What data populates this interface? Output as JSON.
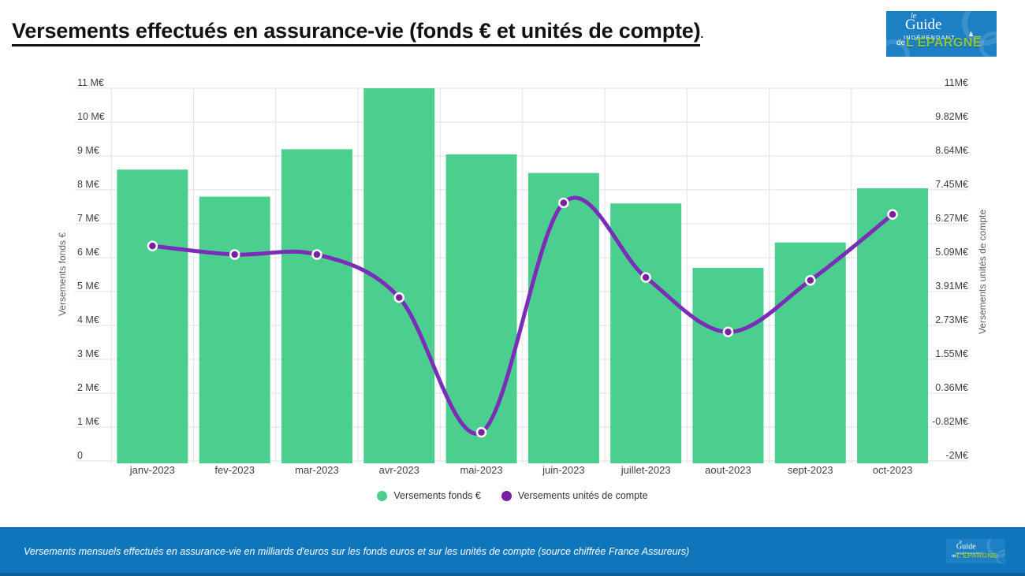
{
  "header": {
    "title": "Versements effectués en assurance-vie (fonds € et unités de compte)",
    "title_suffix": "."
  },
  "logo": {
    "le": "le",
    "guide": "Guide",
    "independant": "INDÉPENDANT",
    "de": "de",
    "epargne": "L'ÉPARGNE"
  },
  "footer": {
    "caption": "Versements mensuels effectués en assurance-vie en milliards d'euros sur les fonds euros et sur les unités de compte (source chiffrée France Assureurs)"
  },
  "colors": {
    "bar_green": "#4ccf8e",
    "line_purple": "#7b2cb8",
    "marker_purple": "#7b1fa2",
    "marker_ring": "#ffffff",
    "grid": "#e2e2e2",
    "tick_text": "#424242",
    "axis_title_text": "#616161",
    "footer_blue": "#0f76bc",
    "logo_blue": "#1d7fc4",
    "logo_green": "#8dc63f"
  },
  "chart_data": {
    "type": "bar+line",
    "categories": [
      "janv-2023",
      "fev-2023",
      "mar-2023",
      "avr-2023",
      "mai-2023",
      "juin-2023",
      "juillet-2023",
      "aout-2023",
      "sept-2023",
      "oct-2023"
    ],
    "series": [
      {
        "name": "Versements fonds €",
        "type": "bar",
        "axis": "left",
        "color": "#4ccf8e",
        "values": [
          8.6,
          7.8,
          9.2,
          11.0,
          9.05,
          8.5,
          7.6,
          5.7,
          6.45,
          8.05
        ]
      },
      {
        "name": "Versements unités de compte",
        "type": "line",
        "axis": "right",
        "color": "#7b2cb8",
        "values": [
          5.5,
          5.2,
          5.2,
          3.7,
          -1.0,
          7.0,
          4.4,
          2.5,
          4.3,
          6.6
        ]
      }
    ],
    "left_axis": {
      "title": "Versements fonds €",
      "min": 0,
      "max": 11,
      "tick_labels": [
        "11 M€",
        "10 M€",
        "9 M€",
        "8 M€",
        "7 M€",
        "6 M€",
        "5 M€",
        "4 M€",
        "3 M€",
        "2 M€",
        "1 M€",
        "0"
      ]
    },
    "right_axis": {
      "title": "Versements unités de compte",
      "min": -2,
      "max": 11,
      "tick_labels": [
        "11M€",
        "9.82M€",
        "8.64M€",
        "7.45M€",
        "6.27M€",
        "5.09M€",
        "3.91M€",
        "2.73M€",
        "1.55M€",
        "0.36M€",
        "-0.82M€",
        "-2M€"
      ]
    },
    "grid": "horizontal-ticks + vertical-band-boundaries",
    "legend_position": "bottom-center"
  }
}
